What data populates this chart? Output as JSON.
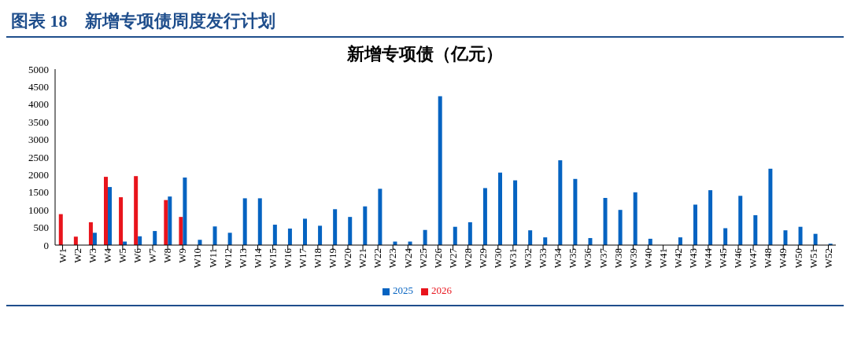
{
  "chart_data": {
    "type": "bar",
    "title": "图表 18　新增专项债周度发行计划",
    "subtitle": "新增专项债（亿元）",
    "categories": [
      "W1",
      "W2",
      "W3",
      "W4",
      "W5",
      "W6",
      "W7",
      "W8",
      "W9",
      "W10",
      "W11",
      "W12",
      "W13",
      "W14",
      "W15",
      "W16",
      "W17",
      "W18",
      "W19",
      "W20",
      "W21",
      "W22",
      "W23",
      "W24",
      "W25",
      "W26",
      "W27",
      "W28",
      "W29",
      "W30",
      "W31",
      "W32",
      "W33",
      "W34",
      "W35",
      "W36",
      "W37",
      "W38",
      "W39",
      "W40",
      "W41",
      "W42",
      "W43",
      "W44",
      "W45",
      "W46",
      "W47",
      "W48",
      "W49",
      "W50",
      "W51",
      "W52"
    ],
    "series": [
      {
        "name": "2026",
        "color": "#e8141c",
        "values": [
          880,
          240,
          650,
          1940,
          1360,
          1960,
          null,
          1280,
          800,
          null,
          null,
          null,
          null,
          null,
          null,
          null,
          null,
          null,
          null,
          null,
          null,
          null,
          null,
          null,
          null,
          null,
          null,
          null,
          null,
          null,
          null,
          null,
          null,
          null,
          null,
          null,
          null,
          null,
          null,
          null,
          null,
          null,
          null,
          null,
          null,
          null,
          null,
          null,
          null,
          null,
          null,
          null
        ]
      },
      {
        "name": "2025",
        "color": "#0563c1",
        "values": [
          null,
          null,
          350,
          1650,
          100,
          250,
          400,
          1380,
          1920,
          150,
          530,
          350,
          1330,
          1330,
          580,
          470,
          750,
          550,
          1020,
          800,
          1100,
          1600,
          100,
          100,
          430,
          4230,
          520,
          650,
          1620,
          2060,
          1840,
          420,
          220,
          2410,
          1880,
          200,
          1340,
          1000,
          1500,
          180,
          null,
          220,
          1150,
          1560,
          480,
          1400,
          850,
          2170,
          420,
          520,
          320,
          40
        ]
      }
    ],
    "ylim": [
      0,
      5000
    ],
    "yticks": [
      0,
      500,
      1000,
      1500,
      2000,
      2500,
      3000,
      3500,
      4000,
      4500,
      5000
    ],
    "grid": false,
    "legend": "bottom"
  }
}
